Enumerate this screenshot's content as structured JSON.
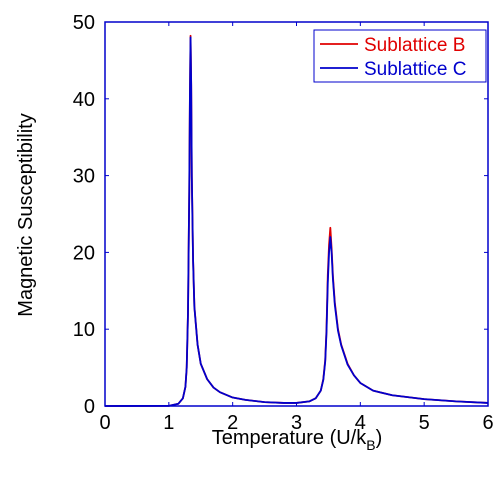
{
  "chart_data": {
    "type": "line",
    "xlabel_main": "Temperature (U/k",
    "xlabel_sub": "B",
    "xlabel_end": ")",
    "ylabel": "Magnetic Susceptibility",
    "xlim": [
      0,
      6
    ],
    "ylim": [
      0,
      50
    ],
    "xticks": [
      0,
      1,
      2,
      3,
      4,
      5,
      6
    ],
    "yticks": [
      0,
      10,
      20,
      30,
      40,
      50
    ],
    "grid": false,
    "legend_position": "top-right",
    "colors": {
      "frame": "#0000cc",
      "axis_text": "#000000"
    },
    "series": [
      {
        "name": "Sublattice B",
        "color": "#e00000",
        "x": [
          0,
          1.0,
          1.15,
          1.22,
          1.26,
          1.28,
          1.3,
          1.32,
          1.33,
          1.34,
          1.35,
          1.36,
          1.38,
          1.4,
          1.45,
          1.5,
          1.6,
          1.7,
          1.8,
          2.0,
          2.2,
          2.5,
          2.8,
          3.0,
          3.2,
          3.3,
          3.38,
          3.42,
          3.45,
          3.47,
          3.49,
          3.51,
          3.53,
          3.55,
          3.57,
          3.6,
          3.65,
          3.7,
          3.8,
          3.9,
          4.0,
          4.2,
          4.5,
          5.0,
          5.5,
          6.0
        ],
        "y": [
          0,
          0.02,
          0.3,
          1.0,
          2.5,
          5.0,
          12.0,
          28.0,
          40.0,
          48.2,
          42.0,
          30.0,
          19.0,
          13.0,
          8.0,
          5.5,
          3.5,
          2.4,
          1.8,
          1.1,
          0.8,
          0.5,
          0.4,
          0.4,
          0.6,
          1.0,
          2.0,
          3.5,
          6.0,
          10.0,
          17.0,
          21.0,
          23.2,
          20.5,
          17.0,
          13.5,
          10.0,
          8.0,
          5.5,
          4.0,
          3.0,
          2.0,
          1.4,
          0.9,
          0.6,
          0.4
        ]
      },
      {
        "name": "Sublattice C",
        "color": "#0000cc",
        "x": [
          0,
          1.0,
          1.15,
          1.22,
          1.26,
          1.28,
          1.3,
          1.32,
          1.33,
          1.34,
          1.35,
          1.36,
          1.38,
          1.4,
          1.45,
          1.5,
          1.6,
          1.7,
          1.8,
          2.0,
          2.2,
          2.5,
          2.8,
          3.0,
          3.2,
          3.3,
          3.38,
          3.42,
          3.45,
          3.47,
          3.49,
          3.51,
          3.53,
          3.55,
          3.57,
          3.6,
          3.65,
          3.7,
          3.8,
          3.9,
          4.0,
          4.2,
          4.5,
          5.0,
          5.5,
          6.0
        ],
        "y": [
          0,
          0.02,
          0.3,
          1.0,
          2.5,
          5.0,
          12.0,
          28.0,
          40.0,
          48.0,
          41.8,
          29.8,
          18.9,
          12.9,
          8.0,
          5.5,
          3.5,
          2.4,
          1.8,
          1.1,
          0.8,
          0.5,
          0.4,
          0.4,
          0.6,
          1.0,
          2.0,
          3.4,
          5.8,
          9.6,
          16.0,
          20.0,
          22.0,
          20.0,
          16.6,
          13.2,
          9.8,
          7.9,
          5.4,
          4.0,
          3.0,
          2.0,
          1.4,
          0.9,
          0.6,
          0.4
        ]
      }
    ]
  }
}
